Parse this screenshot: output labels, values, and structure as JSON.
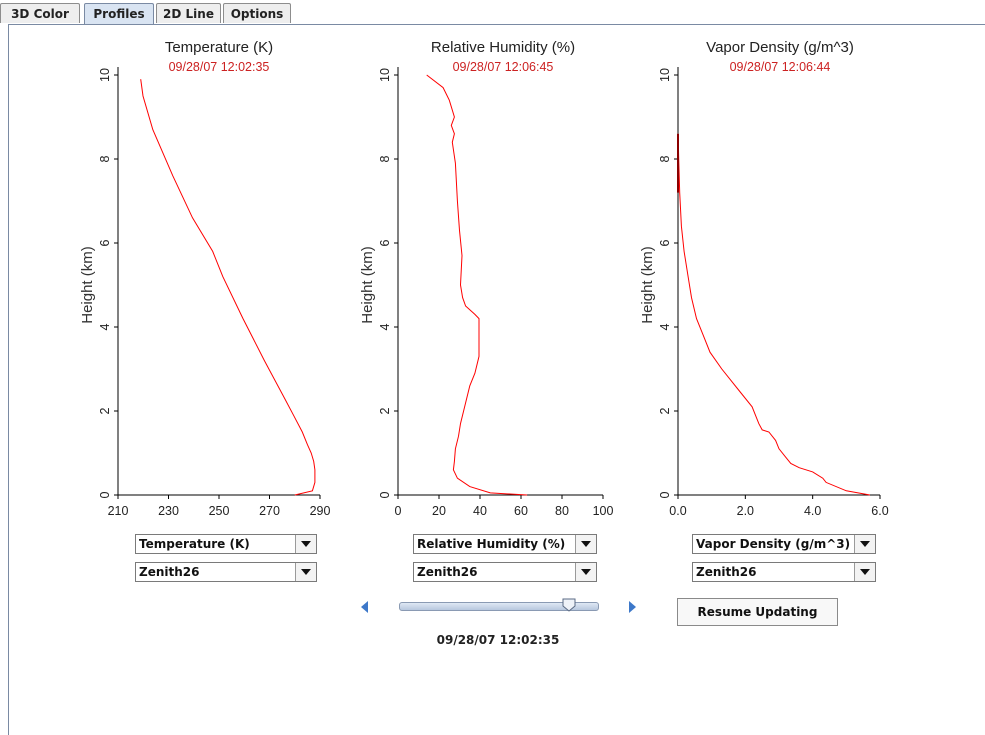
{
  "tabs": [
    {
      "label": "3D Color"
    },
    {
      "label": "Profiles"
    },
    {
      "label": "2D Line"
    },
    {
      "label": "Options"
    }
  ],
  "active_tab": "Profiles",
  "line_color": "#ff0000",
  "timestamp_color": "#cc2222",
  "chart_data": [
    {
      "type": "line",
      "title": "Temperature (K)",
      "subtitle": "09/28/07 12:02:35",
      "xlabel": "",
      "ylabel": "Height (km)",
      "xlim": [
        210,
        290
      ],
      "ylim": [
        0,
        10
      ],
      "xticks": [
        "210",
        "230",
        "250",
        "270",
        "290"
      ],
      "yticks": [
        "0",
        "2",
        "4",
        "6",
        "8",
        "10"
      ],
      "series": [
        {
          "x": [
            280,
            287,
            288,
            288,
            287.5,
            286.5,
            285,
            283,
            279.5,
            276,
            268,
            259.5,
            251.5,
            247.5,
            239.5,
            231.7,
            223.8,
            219.9,
            219
          ],
          "y": [
            0,
            0.1,
            0.3,
            0.6,
            0.8,
            1.0,
            1.2,
            1.5,
            1.9,
            2.3,
            3.2,
            4.2,
            5.2,
            5.8,
            6.6,
            7.6,
            8.7,
            9.5,
            9.9
          ]
        }
      ]
    },
    {
      "type": "line",
      "title": "Relative Humidity (%)",
      "subtitle": "09/28/07 12:06:45",
      "xlabel": "",
      "ylabel": "Height (km)",
      "xlim": [
        0,
        100
      ],
      "ylim": [
        0,
        10
      ],
      "xticks": [
        "0",
        "20",
        "40",
        "60",
        "80",
        "100"
      ],
      "yticks": [
        "0",
        "2",
        "4",
        "6",
        "8",
        "10"
      ],
      "series": [
        {
          "x": [
            63,
            45,
            35,
            29,
            27,
            27.5,
            28,
            29.5,
            30.5,
            32,
            33.5,
            35,
            37.5,
            39.5,
            39.5,
            39.5,
            37.5,
            33,
            31.5,
            30.5,
            31.2,
            30,
            29,
            28,
            26.5,
            27.5,
            26,
            27.5,
            25,
            22,
            14
          ],
          "y": [
            0,
            0.05,
            0.2,
            0.4,
            0.6,
            0.8,
            1.1,
            1.4,
            1.7,
            2.0,
            2.3,
            2.6,
            2.9,
            3.3,
            3.7,
            4.2,
            4.3,
            4.5,
            4.7,
            5.0,
            5.7,
            6.3,
            7.0,
            7.9,
            8.4,
            8.6,
            8.8,
            9.0,
            9.4,
            9.7,
            10.0
          ]
        }
      ]
    },
    {
      "type": "line",
      "title": "Vapor Density (g/m^3)",
      "subtitle": "09/28/07 12:06:44",
      "xlabel": "",
      "ylabel": "Height (km)",
      "xlim": [
        0,
        6
      ],
      "ylim": [
        0,
        10
      ],
      "xticks": [
        "0.0",
        "2.0",
        "4.0",
        "6.0"
      ],
      "yticks": [
        "0",
        "2",
        "4",
        "6",
        "8",
        "10"
      ],
      "series": [
        {
          "x": [
            5.7,
            5.0,
            4.4,
            4.3,
            4.0,
            3.6,
            3.35,
            3.2,
            3.0,
            2.9,
            2.7,
            2.5,
            2.4,
            2.2,
            1.8,
            1.3,
            0.95,
            0.75,
            0.55,
            0.4,
            0.3,
            0.18,
            0.1,
            0.05,
            0.02,
            0.01,
            0.0
          ],
          "y": [
            0,
            0.1,
            0.3,
            0.4,
            0.55,
            0.65,
            0.75,
            0.9,
            1.1,
            1.3,
            1.5,
            1.55,
            1.7,
            2.1,
            2.5,
            3.0,
            3.4,
            3.8,
            4.2,
            4.7,
            5.2,
            5.8,
            6.4,
            7.2,
            8.0,
            8.4,
            8.6
          ]
        }
      ]
    }
  ],
  "controls": [
    {
      "variable": "Temperature (K)",
      "location": "Zenith26"
    },
    {
      "variable": "Relative Humidity (%)",
      "location": "Zenith26"
    },
    {
      "variable": "Vapor Density (g/m^3)",
      "location": "Zenith26"
    }
  ],
  "slider": {
    "position": 0.86
  },
  "resume_label": "Resume Updating",
  "current_time": "09/28/07 12:02:35"
}
